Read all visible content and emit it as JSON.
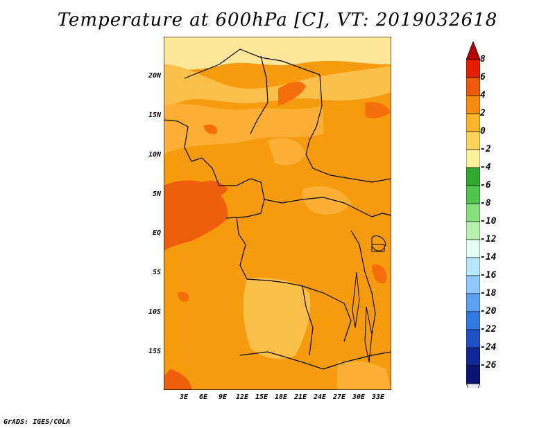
{
  "title": "Temperature at 600hPa [C], VT: 2019032618",
  "credit": "GrADS: IGES/COLA",
  "y_axis_labels": [
    "20N",
    "15N",
    "10N",
    "5N",
    "EQ",
    "5S",
    "10S",
    "15S"
  ],
  "x_axis_labels": [
    "3E",
    "6E",
    "9E",
    "12E",
    "15E",
    "18E",
    "21E",
    "24E",
    "27E",
    "30E",
    "33E"
  ],
  "colorbar": {
    "labels": [
      "8",
      "6",
      "4",
      "2",
      "0",
      "-2",
      "-4",
      "-6",
      "-8",
      "-10",
      "-12",
      "-14",
      "-16",
      "-18",
      "-20",
      "-22",
      "-24",
      "-26"
    ],
    "colors": [
      "#b40000",
      "#e61e00",
      "#f05a0a",
      "#f78c0f",
      "#fab428",
      "#fdd25a",
      "#fff09b",
      "#2eaa2e",
      "#4ec64e",
      "#86e07a",
      "#b8f0b0",
      "#e1fff5",
      "#b7e6ff",
      "#8cc8ff",
      "#5aa0f5",
      "#3278e6",
      "#1e50c8",
      "#0f2896",
      "#0a1473",
      "#e6e6f5"
    ]
  }
}
